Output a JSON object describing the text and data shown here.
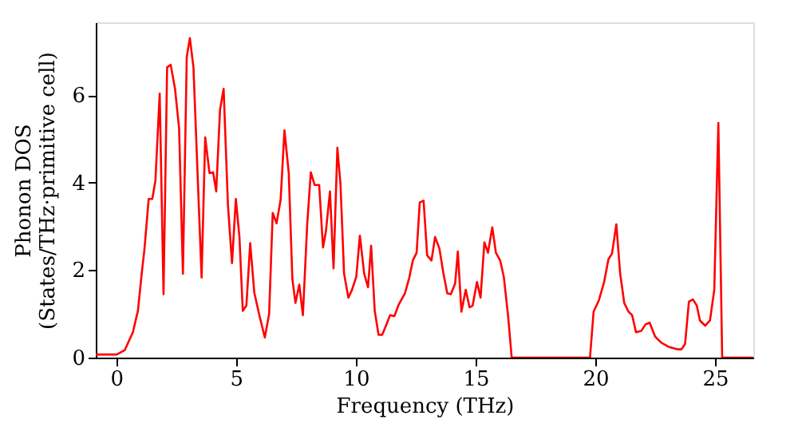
{
  "chart_data": {
    "type": "line",
    "xlabel": "Frequency (THz)",
    "ylabel": "Phonon DOS\n(States/THz·primitive cell)",
    "xlim": [
      -0.86,
      26.6
    ],
    "ylim": [
      0,
      7.67
    ],
    "xticks": [
      0,
      5,
      10,
      15,
      20,
      25
    ],
    "yticks": [
      0,
      2,
      4,
      6
    ],
    "grid": false,
    "marker": "none",
    "line_style": "solid",
    "x": [
      -0.86,
      0.02,
      0.35,
      0.69,
      0.9,
      1.08,
      1.17,
      1.35,
      1.5,
      1.63,
      1.81,
      1.97,
      2.12,
      2.27,
      2.45,
      2.62,
      2.78,
      2.94,
      3.07,
      3.22,
      3.56,
      3.71,
      3.89,
      4.04,
      4.17,
      4.33,
      4.48,
      4.66,
      4.83,
      4.99,
      5.14,
      5.28,
      5.43,
      5.59,
      5.76,
      5.98,
      6.2,
      6.38,
      6.53,
      6.69,
      6.86,
      7.02,
      7.2,
      7.35,
      7.48,
      7.64,
      7.79,
      7.97,
      8.12,
      8.28,
      8.47,
      8.63,
      8.75,
      8.92,
      9.07,
      9.23,
      9.36,
      9.51,
      9.69,
      9.84,
      10.02,
      10.17,
      10.35,
      10.51,
      10.64,
      10.79,
      10.95,
      11.1,
      11.28,
      11.43,
      11.61,
      11.79,
      12.05,
      12.23,
      12.38,
      12.54,
      12.67,
      12.83,
      12.98,
      13.16,
      13.31,
      13.49,
      13.66,
      13.82,
      13.97,
      14.15,
      14.26,
      14.41,
      14.59,
      14.75,
      14.88,
      15.06,
      15.21,
      15.37,
      15.52,
      15.7,
      15.85,
      16.03,
      16.18,
      16.36,
      16.51,
      19.78,
      19.93,
      20.15,
      20.37,
      20.55,
      20.7,
      20.88,
      21.04,
      21.21,
      21.39,
      21.54,
      21.7,
      21.92,
      22.1,
      22.27,
      22.5,
      22.76,
      23.09,
      23.42,
      23.6,
      23.75,
      23.91,
      24.08,
      24.24,
      24.37,
      24.59,
      24.79,
      24.97,
      25.14,
      25.3,
      26.6
    ],
    "series": [
      {
        "color": "#ff0000",
        "values": [
          0.07,
          0.07,
          0.17,
          0.58,
          1.07,
          2.03,
          2.46,
          3.63,
          3.63,
          4.04,
          6.04,
          1.45,
          6.64,
          6.7,
          6.15,
          5.25,
          1.92,
          6.88,
          7.31,
          6.64,
          1.83,
          5.04,
          4.22,
          4.24,
          3.8,
          5.67,
          6.15,
          3.49,
          2.16,
          3.63,
          2.76,
          1.07,
          1.19,
          2.62,
          1.49,
          0.95,
          0.46,
          1.0,
          3.31,
          3.07,
          3.61,
          5.2,
          4.22,
          1.8,
          1.25,
          1.67,
          0.97,
          3.05,
          4.24,
          3.95,
          3.95,
          2.52,
          2.88,
          3.8,
          2.04,
          4.8,
          3.97,
          1.92,
          1.37,
          1.55,
          1.85,
          2.79,
          1.92,
          1.61,
          2.56,
          1.07,
          0.52,
          0.52,
          0.76,
          0.97,
          0.95,
          1.21,
          1.47,
          1.82,
          2.22,
          2.4,
          3.55,
          3.59,
          2.34,
          2.22,
          2.76,
          2.5,
          1.92,
          1.47,
          1.45,
          1.7,
          2.43,
          1.05,
          1.55,
          1.15,
          1.19,
          1.73,
          1.37,
          2.64,
          2.4,
          2.98,
          2.4,
          2.22,
          1.85,
          0.95,
          0,
          0,
          1.05,
          1.31,
          1.73,
          2.25,
          2.38,
          3.05,
          1.92,
          1.25,
          1.05,
          0.97,
          0.58,
          0.61,
          0.76,
          0.8,
          0.48,
          0.34,
          0.24,
          0.19,
          0.19,
          0.31,
          1.28,
          1.33,
          1.19,
          0.85,
          0.73,
          0.85,
          1.55,
          5.37,
          0,
          0
        ]
      }
    ]
  }
}
